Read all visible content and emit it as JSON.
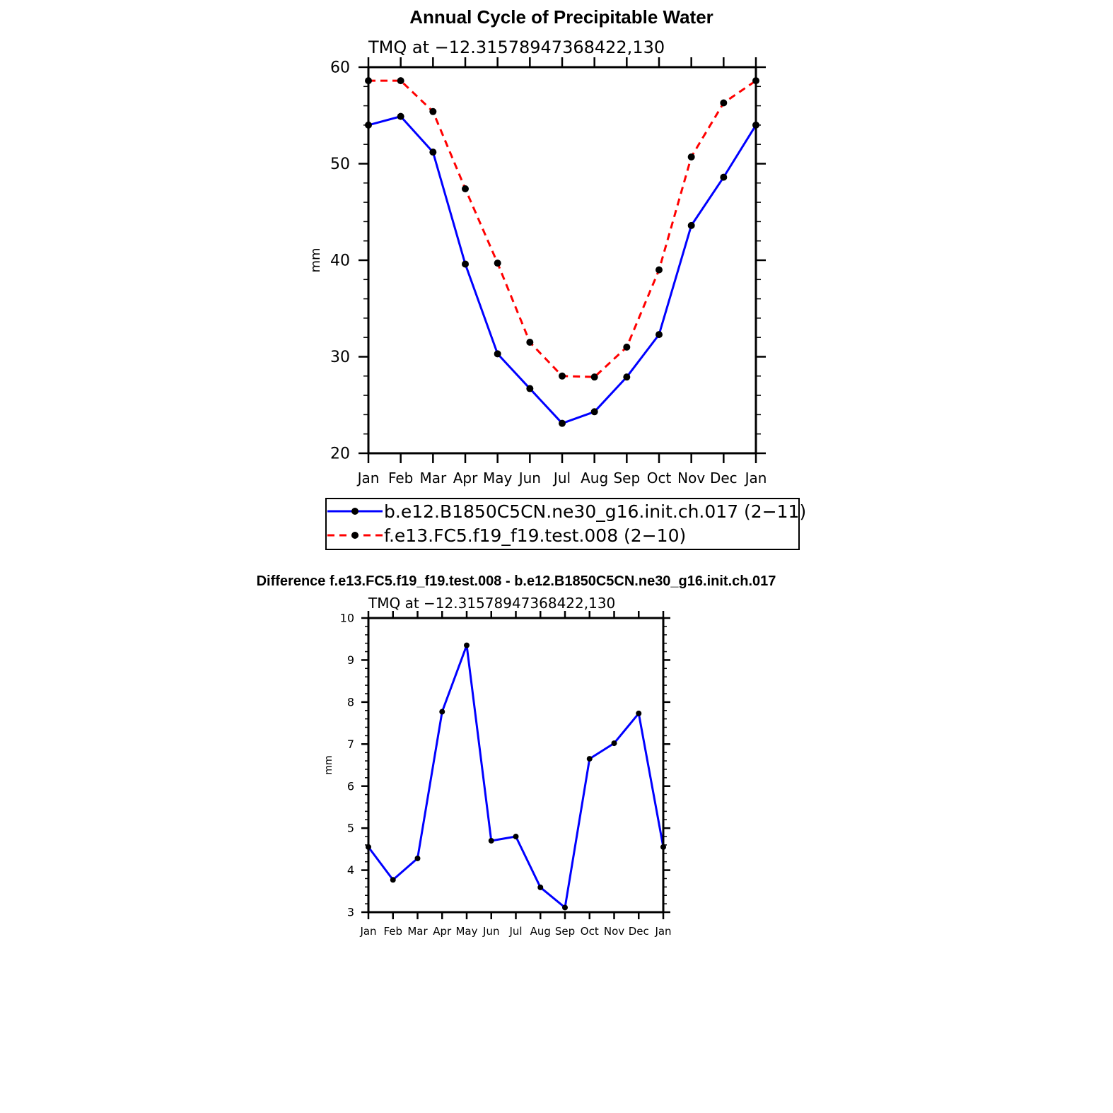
{
  "chart_data": [
    {
      "type": "line",
      "title": "Annual Cycle of Precipitable Water",
      "subtitle": "TMQ at −12.31578947368422,130",
      "xlabel": "",
      "ylabel": "mm",
      "categories": [
        "Jan",
        "Feb",
        "Mar",
        "Apr",
        "May",
        "Jun",
        "Jul",
        "Aug",
        "Sep",
        "Oct",
        "Nov",
        "Dec",
        "Jan"
      ],
      "ylim": [
        20,
        60
      ],
      "yticks": [
        "20",
        "30",
        "40",
        "50",
        "60"
      ],
      "series": [
        {
          "name": "b.e12.B1850C5CN.ne30_g16.init.ch.017 (2−11)",
          "color": "#0000ff",
          "dash": "solid",
          "values": [
            54.0,
            54.9,
            51.2,
            39.6,
            30.3,
            26.7,
            23.1,
            24.3,
            27.9,
            32.3,
            43.6,
            48.6,
            54.0
          ]
        },
        {
          "name": "f.e13.FC5.f19_f19.test.008 (2−10)",
          "color": "#ff0000",
          "dash": "dashed",
          "values": [
            58.6,
            58.6,
            55.4,
            47.4,
            39.7,
            31.5,
            28.0,
            27.9,
            31.0,
            39.0,
            50.7,
            56.3,
            58.6
          ]
        }
      ],
      "legend": "bottom"
    },
    {
      "type": "line",
      "title": "Difference f.e13.FC5.f19_f19.test.008 - b.e12.B1850C5CN.ne30_g16.init.ch.017",
      "subtitle": "TMQ at −12.31578947368422,130",
      "xlabel": "",
      "ylabel": "mm",
      "categories": [
        "Jan",
        "Feb",
        "Mar",
        "Apr",
        "May",
        "Jun",
        "Jul",
        "Aug",
        "Sep",
        "Oct",
        "Nov",
        "Dec",
        "Jan"
      ],
      "ylim": [
        3,
        10
      ],
      "yticks": [
        "3",
        "4",
        "5",
        "6",
        "7",
        "8",
        "9",
        "10"
      ],
      "series": [
        {
          "name": "difference",
          "color": "#0000ff",
          "dash": "solid",
          "values": [
            4.55,
            3.77,
            4.28,
            7.77,
            9.35,
            4.7,
            4.8,
            3.59,
            3.11,
            6.65,
            7.02,
            7.73,
            4.55
          ]
        }
      ]
    }
  ]
}
